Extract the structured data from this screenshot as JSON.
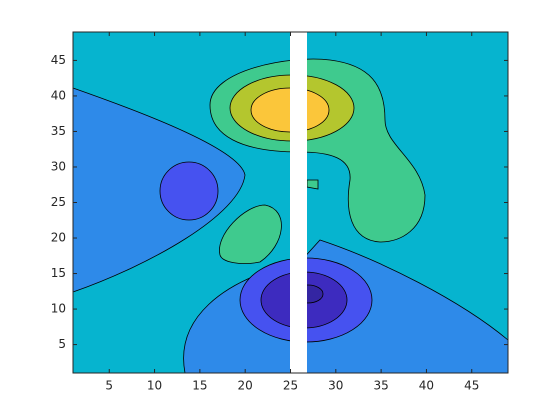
{
  "chart_data": {
    "type": "contour",
    "xlim": [
      1,
      49
    ],
    "ylim": [
      1,
      49
    ],
    "xticks": [
      5,
      10,
      15,
      20,
      25,
      30,
      35,
      40,
      45
    ],
    "yticks": [
      5,
      10,
      15,
      20,
      25,
      30,
      35,
      40,
      45
    ],
    "level_colors": [
      "#3d2bbf",
      "#4652f0",
      "#2e8ae9",
      "#06b4cf",
      "#3fca8e",
      "#b4c62e",
      "#fbc63a"
    ]
  }
}
